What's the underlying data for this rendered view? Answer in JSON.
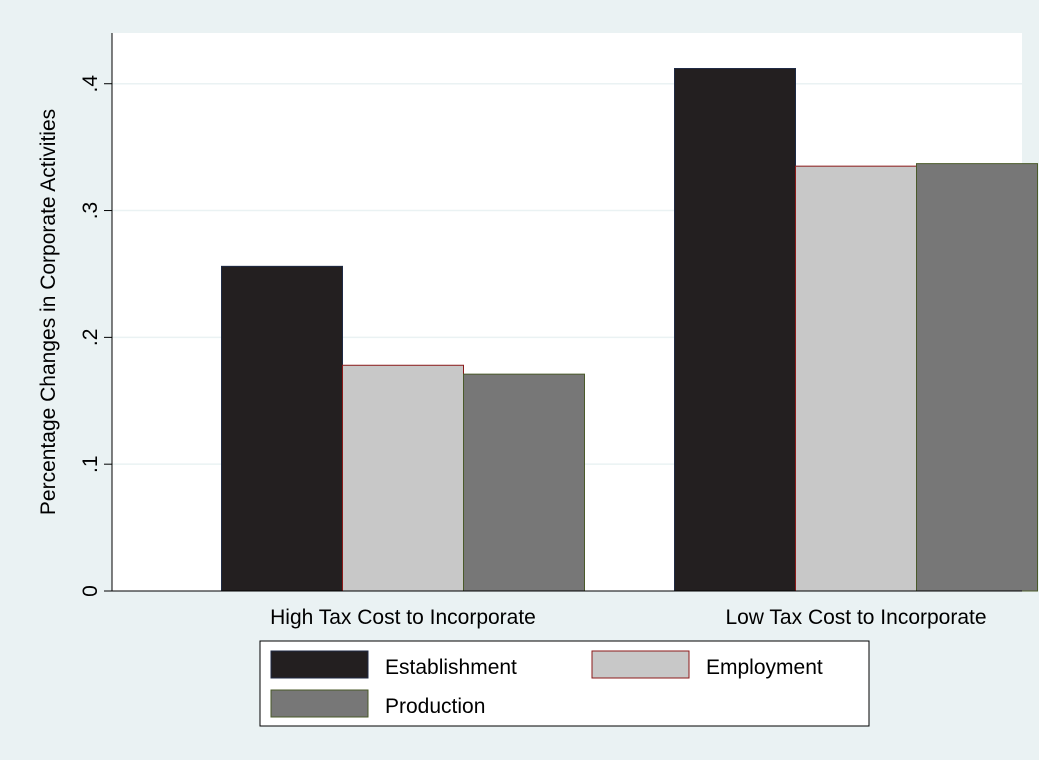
{
  "chart_data": {
    "type": "bar",
    "title": "",
    "xlabel": "",
    "ylabel": "Percentage Changes in Corporate Activities",
    "categories": [
      "High Tax Cost to Incorporate",
      "Low Tax Cost to Incorporate"
    ],
    "series": [
      {
        "name": "Establishment",
        "values": [
          0.256,
          0.412
        ],
        "color": "#231f20",
        "edge": "#1f2a44"
      },
      {
        "name": "Employment",
        "values": [
          0.178,
          0.335
        ],
        "color": "#c8c8c8",
        "edge": "#8b1a1a"
      },
      {
        "name": "Production",
        "values": [
          0.171,
          0.337
        ],
        "color": "#777777",
        "edge": "#4a5a2a"
      }
    ],
    "ylim": [
      0,
      0.44
    ],
    "yticks": [
      0,
      0.1,
      0.2,
      0.3,
      0.4
    ],
    "ytick_labels": [
      "0",
      ".1",
      ".2",
      ".3",
      ".4"
    ],
    "grid": true,
    "legend_position": "bottom",
    "colors": {
      "outer_background": "#eaf2f3",
      "plot_background": "#ffffff",
      "grid": "#eaf2f3",
      "axis": "#000000"
    }
  }
}
